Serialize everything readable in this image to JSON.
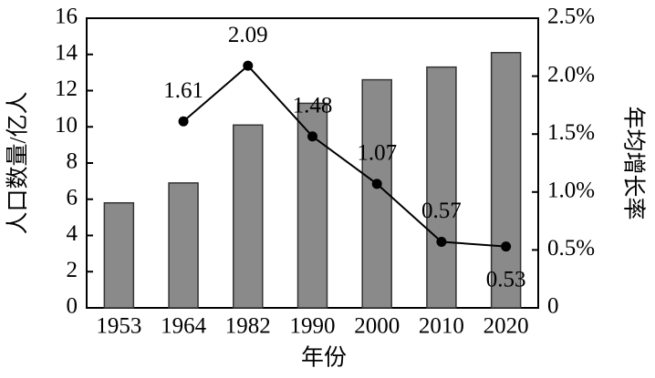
{
  "chart_data": {
    "type": "bar",
    "x_label": "年份",
    "y_label": "人口数量/亿人",
    "y2_label": "年均增长率",
    "categories": [
      "1953",
      "1964",
      "1982",
      "1990",
      "2000",
      "2010",
      "2020"
    ],
    "series": [
      {
        "type": "bar",
        "color": "#8a8a8a",
        "values": [
          5.8,
          6.9,
          10.1,
          11.3,
          12.6,
          13.3,
          14.1
        ]
      },
      {
        "type": "line",
        "axis": "y2",
        "color": "#000000",
        "values": [
          null,
          1.61,
          2.09,
          1.48,
          1.07,
          0.57,
          0.53
        ]
      }
    ],
    "ylim": [
      0,
      16
    ],
    "yticks": [
      0,
      2,
      4,
      6,
      8,
      10,
      12,
      14,
      16
    ],
    "y2lim": [
      0,
      2.5
    ],
    "y2ticks": [
      0,
      {
        "value": 0.5,
        "label": "0.5%"
      },
      {
        "value": 1.0,
        "label": "1.0%"
      },
      {
        "value": 1.5,
        "label": "1.5%"
      },
      {
        "value": 2.0,
        "label": "2.0%"
      },
      {
        "value": 2.5,
        "label": "2.5%"
      }
    ]
  }
}
